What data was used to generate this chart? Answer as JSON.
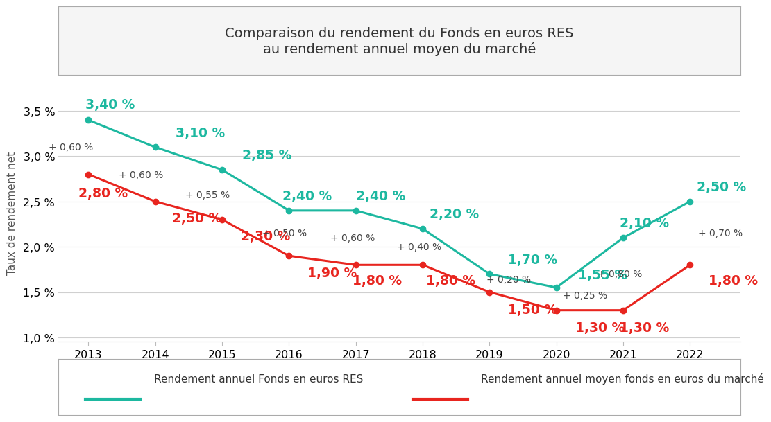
{
  "title_line1": "Comparaison du rendement du Fonds en euros RES",
  "title_line2": "au rendement annuel moyen du marché",
  "years": [
    2013,
    2014,
    2015,
    2016,
    2017,
    2018,
    2019,
    2020,
    2021,
    2022
  ],
  "fonds_res": [
    3.4,
    3.1,
    2.85,
    2.4,
    2.4,
    2.2,
    1.7,
    1.55,
    2.1,
    2.5
  ],
  "marche": [
    2.8,
    2.5,
    2.3,
    1.9,
    1.8,
    1.8,
    1.5,
    1.3,
    1.3,
    1.8
  ],
  "fonds_labels": [
    "3,40 %",
    "3,10 %",
    "2,85 %",
    "2,40 %",
    "2,40 %",
    "2,20 %",
    "1,70 %",
    "1,55 %",
    "2,10 %",
    "2,50 %"
  ],
  "marche_labels": [
    "2,80 %",
    "2,50 %",
    "2,30 %",
    "1,90 %",
    "1,80 %",
    "1,80 %",
    "1,50 %",
    "1,30 %",
    "1,30 %",
    "1,80 %"
  ],
  "diff_texts": [
    "+ 0,60 %",
    "+ 0,60 %",
    "+ 0,55 %",
    "+ 0,50 %",
    "+ 0,60 %",
    "+ 0,40 %",
    "+ 0,20 %",
    "+ 0,25 %",
    "+ 0,80 %",
    "+ 0,70 %"
  ],
  "fonds_color": "#1db8a0",
  "marche_color": "#e8251f",
  "diff_color": "#444444",
  "title_color": "#333333",
  "ylabel": "Taux de rendement net",
  "ylim_min": 0.95,
  "ylim_max": 3.8,
  "yticks": [
    1.0,
    1.5,
    2.0,
    2.5,
    3.0,
    3.5
  ],
  "ytick_labels": [
    "1,0 %",
    "1,5 %",
    "2,0 %",
    "2,5 %",
    "3,0 %",
    "3,5 %"
  ],
  "legend_label_fonds": "Rendement annuel Fonds en euros RES",
  "legend_label_marche": "Rendement annuel moyen fonds en euros du marché",
  "background_color": "#ffffff",
  "grid_color": "#d0d0d0",
  "title_box_facecolor": "#f5f5f5",
  "title_box_edgecolor": "#aaaaaa"
}
